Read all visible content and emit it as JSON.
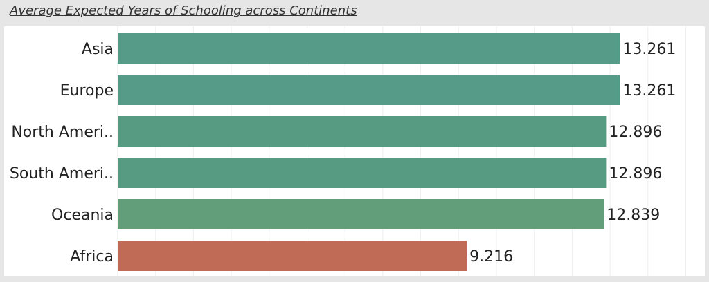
{
  "title": "Average Expected Years of Schooling across Continents",
  "chart_data": {
    "type": "bar",
    "orientation": "horizontal",
    "title": "Average Expected Years of Schooling across Continents",
    "categories": [
      "Asia",
      "Europe",
      "North Ameri..",
      "South Ameri..",
      "Oceania",
      "Africa"
    ],
    "values": [
      13.261,
      13.261,
      12.896,
      12.896,
      12.839,
      9.216
    ],
    "value_labels": [
      "13.261",
      "13.261",
      "12.896",
      "12.896",
      "12.839",
      "9.216"
    ],
    "colors": [
      "#569b88",
      "#569b88",
      "#589b83",
      "#589b83",
      "#629e79",
      "#c06b55"
    ],
    "xlim": [
      0,
      15
    ],
    "xlabel": "",
    "ylabel": "",
    "grid": true,
    "legend": "none"
  }
}
